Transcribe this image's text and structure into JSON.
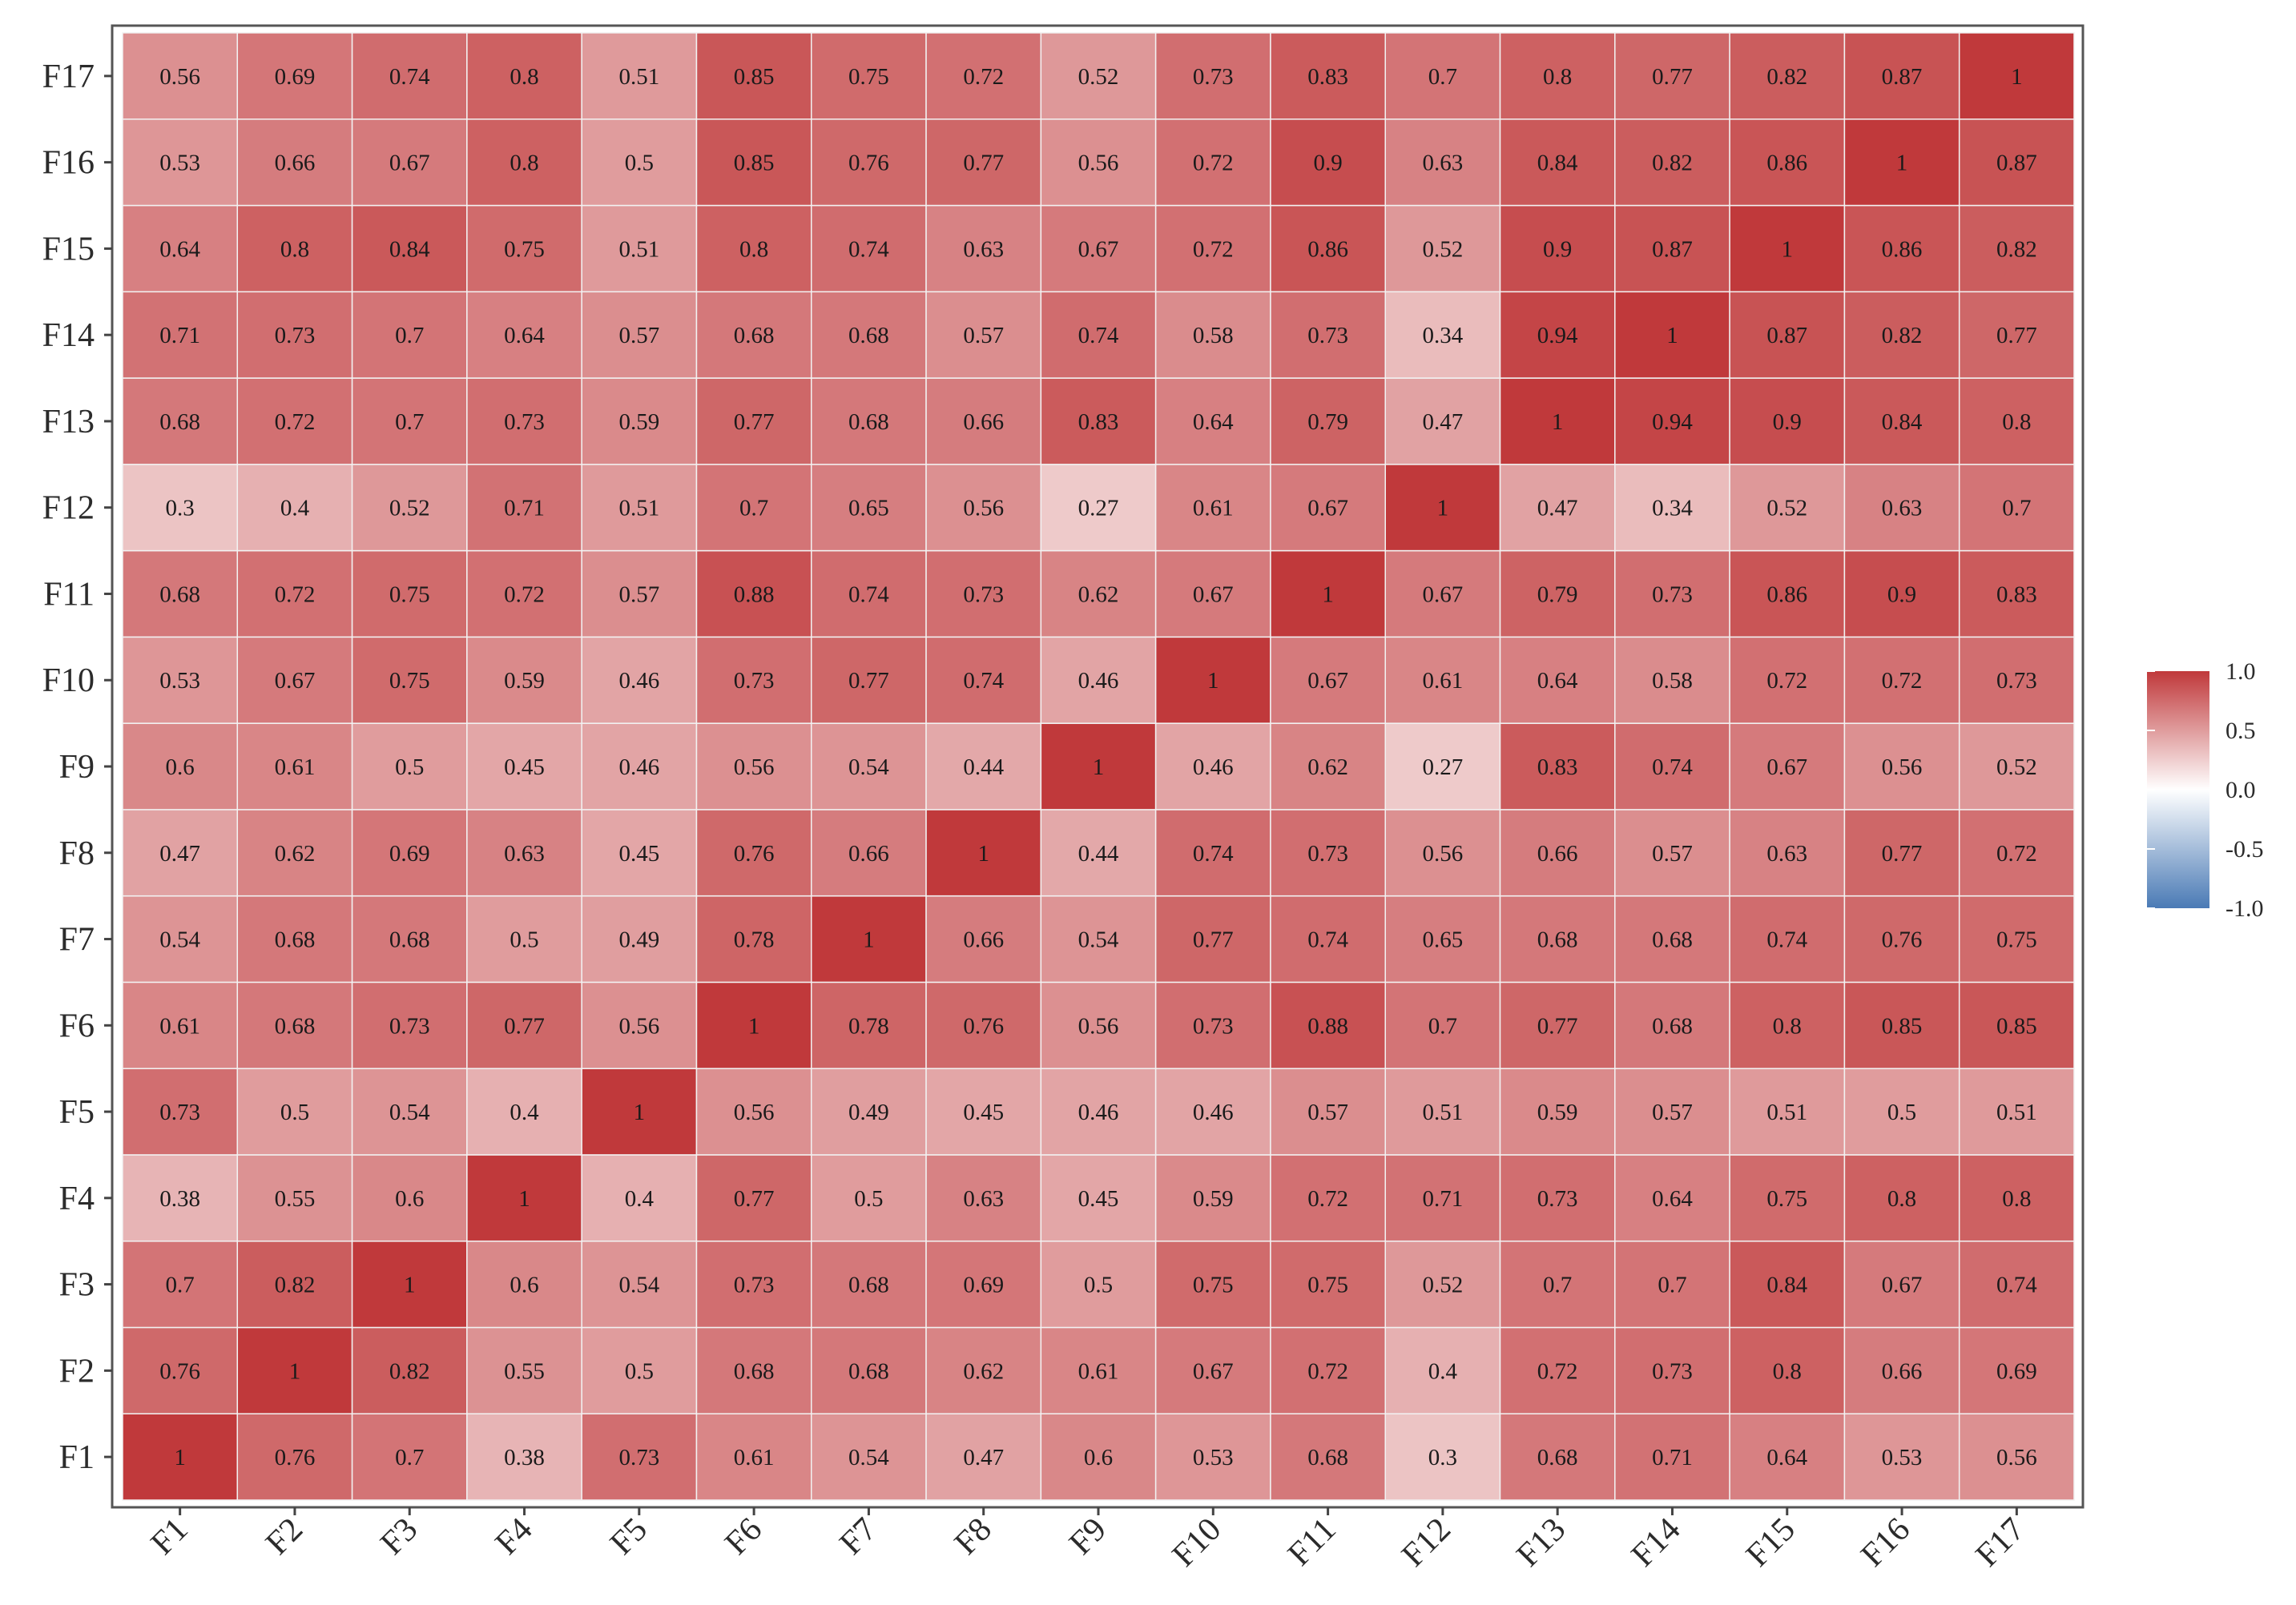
{
  "chart_data": {
    "type": "heatmap",
    "title": "",
    "xlabel": "",
    "ylabel": "",
    "x_categories": [
      "F1",
      "F2",
      "F3",
      "F4",
      "F5",
      "F6",
      "F7",
      "F8",
      "F9",
      "F10",
      "F11",
      "F12",
      "F13",
      "F14",
      "F15",
      "F16",
      "F17"
    ],
    "y_categories": [
      "F1",
      "F2",
      "F3",
      "F4",
      "F5",
      "F6",
      "F7",
      "F8",
      "F9",
      "F10",
      "F11",
      "F12",
      "F13",
      "F14",
      "F15",
      "F16",
      "F17"
    ],
    "values": [
      [
        "1",
        "0.76",
        "0.7",
        "0.38",
        "0.73",
        "0.61",
        "0.54",
        "0.47",
        "0.6",
        "0.53",
        "0.68",
        "0.3",
        "0.68",
        "0.71",
        "0.64",
        "0.53",
        "0.56"
      ],
      [
        "0.76",
        "1",
        "0.82",
        "0.55",
        "0.5",
        "0.68",
        "0.68",
        "0.62",
        "0.61",
        "0.67",
        "0.72",
        "0.4",
        "0.72",
        "0.73",
        "0.8",
        "0.66",
        "0.69"
      ],
      [
        "0.7",
        "0.82",
        "1",
        "0.6",
        "0.54",
        "0.73",
        "0.68",
        "0.69",
        "0.5",
        "0.75",
        "0.75",
        "0.52",
        "0.7",
        "0.7",
        "0.84",
        "0.67",
        "0.74"
      ],
      [
        "0.38",
        "0.55",
        "0.6",
        "1",
        "0.4",
        "0.77",
        "0.5",
        "0.63",
        "0.45",
        "0.59",
        "0.72",
        "0.71",
        "0.73",
        "0.64",
        "0.75",
        "0.8",
        "0.8"
      ],
      [
        "0.73",
        "0.5",
        "0.54",
        "0.4",
        "1",
        "0.56",
        "0.49",
        "0.45",
        "0.46",
        "0.46",
        "0.57",
        "0.51",
        "0.59",
        "0.57",
        "0.51",
        "0.5",
        "0.51"
      ],
      [
        "0.61",
        "0.68",
        "0.73",
        "0.77",
        "0.56",
        "1",
        "0.78",
        "0.76",
        "0.56",
        "0.73",
        "0.88",
        "0.7",
        "0.77",
        "0.68",
        "0.8",
        "0.85",
        "0.85"
      ],
      [
        "0.54",
        "0.68",
        "0.68",
        "0.5",
        "0.49",
        "0.78",
        "1",
        "0.66",
        "0.54",
        "0.77",
        "0.74",
        "0.65",
        "0.68",
        "0.68",
        "0.74",
        "0.76",
        "0.75"
      ],
      [
        "0.47",
        "0.62",
        "0.69",
        "0.63",
        "0.45",
        "0.76",
        "0.66",
        "1",
        "0.44",
        "0.74",
        "0.73",
        "0.56",
        "0.66",
        "0.57",
        "0.63",
        "0.77",
        "0.72"
      ],
      [
        "0.6",
        "0.61",
        "0.5",
        "0.45",
        "0.46",
        "0.56",
        "0.54",
        "0.44",
        "1",
        "0.46",
        "0.62",
        "0.27",
        "0.83",
        "0.74",
        "0.67",
        "0.56",
        "0.52"
      ],
      [
        "0.53",
        "0.67",
        "0.75",
        "0.59",
        "0.46",
        "0.73",
        "0.77",
        "0.74",
        "0.46",
        "1",
        "0.67",
        "0.61",
        "0.64",
        "0.58",
        "0.72",
        "0.72",
        "0.73"
      ],
      [
        "0.68",
        "0.72",
        "0.75",
        "0.72",
        "0.57",
        "0.88",
        "0.74",
        "0.73",
        "0.62",
        "0.67",
        "1",
        "0.67",
        "0.79",
        "0.73",
        "0.86",
        "0.9",
        "0.83"
      ],
      [
        "0.3",
        "0.4",
        "0.52",
        "0.71",
        "0.51",
        "0.7",
        "0.65",
        "0.56",
        "0.27",
        "0.61",
        "0.67",
        "1",
        "0.47",
        "0.34",
        "0.52",
        "0.63",
        "0.7"
      ],
      [
        "0.68",
        "0.72",
        "0.7",
        "0.73",
        "0.59",
        "0.77",
        "0.68",
        "0.66",
        "0.83",
        "0.64",
        "0.79",
        "0.47",
        "1",
        "0.94",
        "0.9",
        "0.84",
        "0.8"
      ],
      [
        "0.71",
        "0.73",
        "0.7",
        "0.64",
        "0.57",
        "0.68",
        "0.68",
        "0.57",
        "0.74",
        "0.58",
        "0.73",
        "0.34",
        "0.94",
        "1",
        "0.87",
        "0.82",
        "0.77"
      ],
      [
        "0.64",
        "0.8",
        "0.84",
        "0.75",
        "0.51",
        "0.8",
        "0.74",
        "0.63",
        "0.67",
        "0.72",
        "0.86",
        "0.52",
        "0.9",
        "0.87",
        "1",
        "0.86",
        "0.82"
      ],
      [
        "0.53",
        "0.66",
        "0.67",
        "0.8",
        "0.5",
        "0.85",
        "0.76",
        "0.77",
        "0.56",
        "0.72",
        "0.9",
        "0.63",
        "0.84",
        "0.82",
        "0.86",
        "1",
        "0.87"
      ],
      [
        "0.56",
        "0.69",
        "0.74",
        "0.8",
        "0.51",
        "0.85",
        "0.75",
        "0.72",
        "0.52",
        "0.73",
        "0.83",
        "0.7",
        "0.8",
        "0.77",
        "0.82",
        "0.87",
        "1"
      ]
    ],
    "color_scale": {
      "min": -1.0,
      "mid": 0.0,
      "max": 1.0,
      "low_color": "#4a7ab5",
      "mid_color": "#ffffff",
      "high_color": "#c0393b",
      "ticks": [
        "1.0",
        "0.5",
        "0.0",
        "-0.5",
        "-1.0"
      ]
    },
    "legend_position": "right",
    "grid": false
  }
}
